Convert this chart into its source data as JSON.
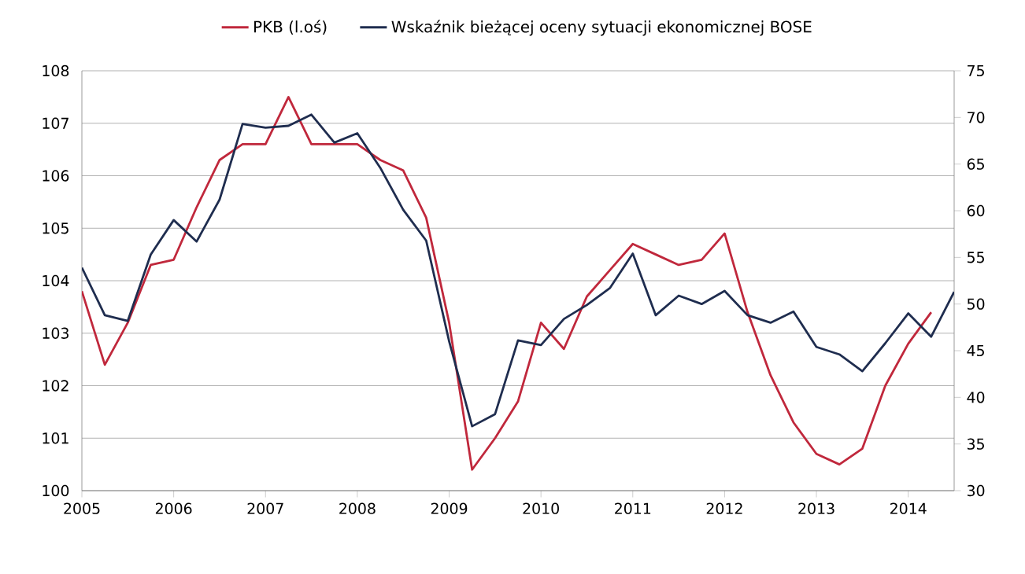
{
  "chart_data": {
    "type": "line",
    "x": [
      2005,
      2005.25,
      2005.5,
      2005.75,
      2006,
      2006.25,
      2006.5,
      2006.75,
      2007,
      2007.25,
      2007.5,
      2007.75,
      2008,
      2008.25,
      2008.5,
      2008.75,
      2009,
      2009.25,
      2009.5,
      2009.75,
      2010,
      2010.25,
      2010.5,
      2010.75,
      2011,
      2011.25,
      2011.5,
      2011.75,
      2012,
      2012.25,
      2012.5,
      2012.75,
      2013,
      2013.25,
      2013.5,
      2013.75,
      2014,
      2014.25,
      2014.5
    ],
    "series": [
      {
        "name": "PKB (l.oś)",
        "color": "#c0283c",
        "values": [
          103.8,
          102.4,
          103.2,
          104.3,
          104.4,
          105.4,
          106.3,
          106.6,
          106.6,
          107.5,
          106.6,
          106.6,
          106.6,
          106.3,
          106.1,
          105.2,
          103.2,
          100.4,
          101.0,
          101.7,
          103.2,
          102.7,
          103.7,
          104.2,
          104.7,
          104.5,
          104.3,
          104.4,
          104.9,
          103.4,
          102.2,
          101.3,
          100.7,
          100.5,
          100.8,
          102.0,
          102.8,
          103.4,
          null
        ]
      },
      {
        "name": "Wskaźnik bieżącej oceny sytuacji ekonomicznej BOSE",
        "color": "#1f2d4f",
        "axis": "y2",
        "values": [
          53.9,
          48.8,
          48.2,
          55.3,
          59.0,
          56.7,
          61.2,
          69.3,
          68.9,
          69.1,
          70.3,
          67.3,
          68.3,
          64.6,
          60.1,
          56.8,
          46.0,
          36.9,
          38.2,
          46.1,
          45.6,
          48.4,
          49.9,
          51.7,
          55.4,
          48.8,
          50.9,
          50.0,
          51.4,
          48.8,
          48.0,
          49.2,
          45.4,
          44.6,
          42.8,
          45.8,
          49.0,
          46.5,
          51.3
        ]
      }
    ],
    "xlim": [
      2005,
      2014.5
    ],
    "xticks": [
      2005,
      2006,
      2007,
      2008,
      2009,
      2010,
      2011,
      2012,
      2013,
      2014
    ],
    "ylim": [
      100,
      108
    ],
    "yticks": [
      100,
      101,
      102,
      103,
      104,
      105,
      106,
      107,
      108
    ],
    "y2lim": [
      30,
      75
    ],
    "y2ticks": [
      30,
      35,
      40,
      45,
      50,
      55,
      60,
      65,
      70,
      75
    ],
    "grid": "y",
    "legend": "top",
    "line_style": "solid"
  }
}
